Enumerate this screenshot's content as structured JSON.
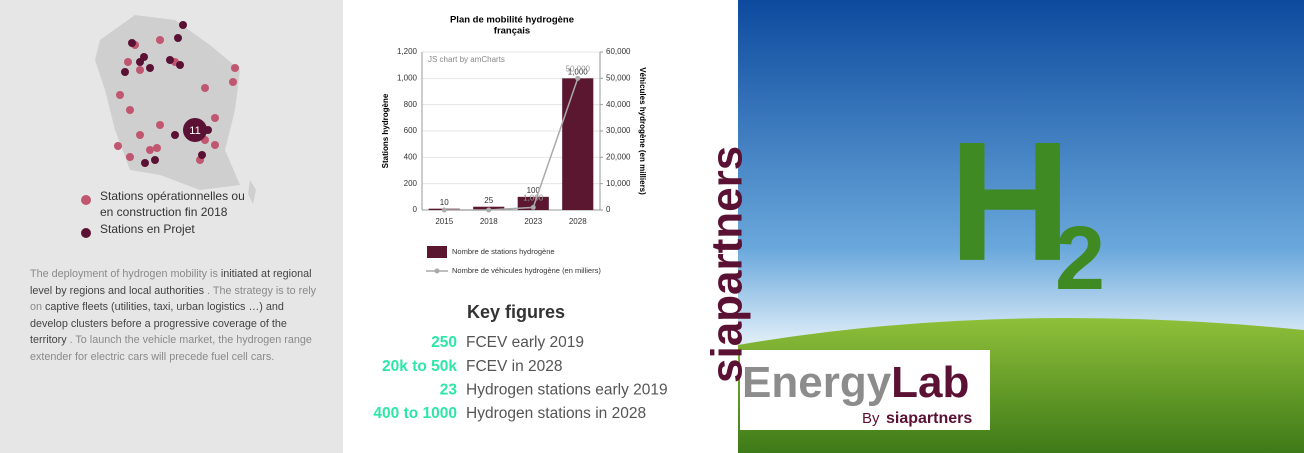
{
  "map_panel": {
    "cluster_label": "11",
    "operational_color": "#c0566f",
    "project_color": "#5a1133",
    "legend": [
      {
        "lines": [
          "Stations opérationnelles ou",
          "en construction fin 2018"
        ]
      },
      {
        "lines": [
          "Stations en Projet"
        ]
      }
    ],
    "paragraph": [
      {
        "text": "The deployment of hydrogen mobility is ",
        "bold": false
      },
      {
        "text": "initiated at regional level by regions and local authorities",
        "bold": true
      },
      {
        "text": " . The strategy is to rely on ",
        "bold": false
      },
      {
        "text": "captive fleets (utilities, taxi, urban logistics …) and develop clusters before a progressive coverage of the territory",
        "bold": true
      },
      {
        "text": " . To launch the vehicle market, the hydrogen range extender for electric cars will precede fuel cell cars.",
        "bold": false
      }
    ]
  },
  "chart_data": {
    "type": "bar-line",
    "title": [
      "Plan de mobilité hydrogène",
      "français"
    ],
    "credit": "JS chart by amCharts",
    "y_label": "Stations hydrogène",
    "y2_label": "Véhicules hydrogène (en milliers)",
    "categories": [
      "2015",
      "2018",
      "2023",
      "2028"
    ],
    "ylim": [
      0,
      1200
    ],
    "yticks": [
      0,
      200,
      400,
      600,
      800,
      {
        "value": 1000,
        "label": "1,000"
      },
      {
        "value": 1200,
        "label": "1,200"
      }
    ],
    "y2lim": [
      0,
      60000
    ],
    "y2ticks": [
      0,
      {
        "value": 10000,
        "label": "10,000"
      },
      {
        "value": 20000,
        "label": "20,000"
      },
      {
        "value": 30000,
        "label": "30,000"
      },
      {
        "value": 40000,
        "label": "40,000"
      },
      {
        "value": 50000,
        "label": "50,000"
      },
      {
        "value": 60000,
        "label": "60,000"
      }
    ],
    "series": [
      {
        "name": "Nombre de stations hydrogène",
        "kind": "bar",
        "color": "#5c1730",
        "values": [
          10,
          25,
          100,
          1000
        ],
        "value_labels": [
          "10",
          "25",
          "100",
          "1,000"
        ]
      },
      {
        "name": "Nombre de véhicules hydrogène (en milliers)",
        "kind": "line",
        "axis": "y2",
        "color": "#aaaaaa",
        "values": [
          5,
          20,
          1000,
          50000
        ],
        "value_labels": [
          null,
          null,
          "1,000",
          "50,000"
        ]
      }
    ]
  },
  "key_figures": {
    "title": "Key figures",
    "color": "#2ee6a8",
    "rows": [
      {
        "value": "250",
        "label": "FCEV early 2019"
      },
      {
        "value": "20k to 50k",
        "label": "FCEV in 2028"
      },
      {
        "value": "23",
        "label": "Hydrogen stations early 2019"
      },
      {
        "value": "400 to 1000",
        "label": "Hydrogen stations in 2028"
      }
    ]
  },
  "brand": {
    "vertical": "siapartners",
    "energy": "Energy",
    "lab": "Lab",
    "by": "By",
    "sia": "siapartners"
  },
  "image_text": {
    "h": "H",
    "two": "2"
  }
}
